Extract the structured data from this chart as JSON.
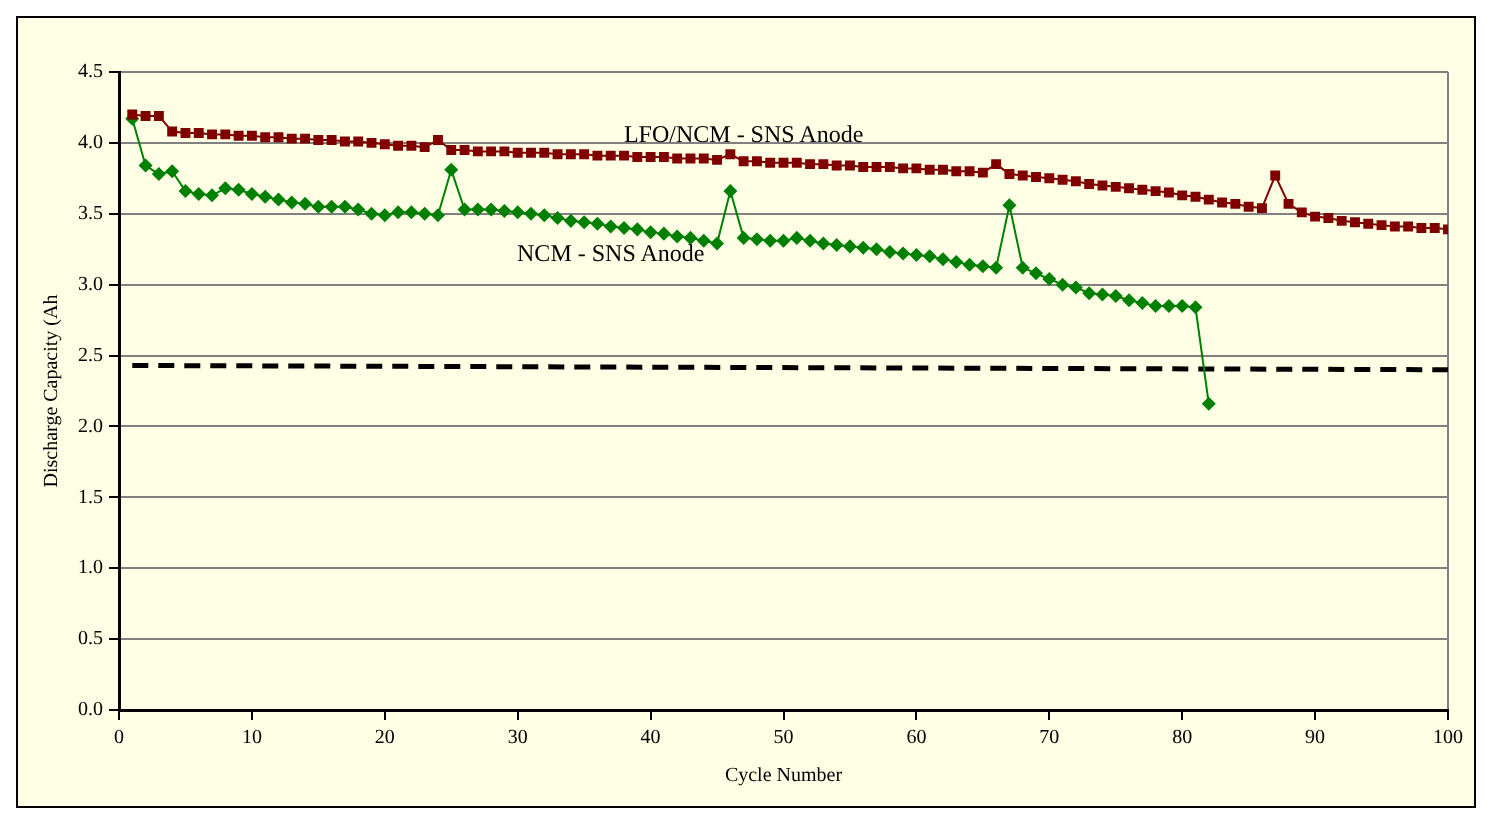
{
  "chart_data": {
    "type": "line",
    "xlabel": "Cycle Number",
    "ylabel": "Discharge Capacity (Ah",
    "xlim": [
      0,
      100
    ],
    "xticks": [
      0,
      10,
      20,
      30,
      40,
      50,
      60,
      70,
      80,
      90,
      100
    ],
    "ylim": [
      0,
      4.5
    ],
    "yticks": [
      {
        "value": 0,
        "label": "0.0"
      },
      {
        "value": 0.5,
        "label": "0.5"
      },
      {
        "value": 1,
        "label": "1.0"
      },
      {
        "value": 1.5,
        "label": "1.5"
      },
      {
        "value": 2,
        "label": "2.0"
      },
      {
        "value": 2.5,
        "label": "2.5"
      },
      {
        "value": 3,
        "label": "3.0"
      },
      {
        "value": 3.5,
        "label": "3.5"
      },
      {
        "value": 4,
        "label": "4.0"
      },
      {
        "value": 4.5,
        "label": "4.5"
      }
    ],
    "grid": "y",
    "legend": false,
    "series": [
      {
        "name": "LFO/NCM - SNS Anode",
        "color": "#800000",
        "marker": "square",
        "line_style": "solid",
        "x": [
          1,
          2,
          3,
          4,
          5,
          6,
          7,
          8,
          9,
          10,
          11,
          12,
          13,
          14,
          15,
          16,
          17,
          18,
          19,
          20,
          21,
          22,
          23,
          24,
          25,
          26,
          27,
          28,
          29,
          30,
          31,
          32,
          33,
          34,
          35,
          36,
          37,
          38,
          39,
          40,
          41,
          42,
          43,
          44,
          45,
          46,
          47,
          48,
          49,
          50,
          51,
          52,
          53,
          54,
          55,
          56,
          57,
          58,
          59,
          60,
          61,
          62,
          63,
          64,
          65,
          66,
          67,
          68,
          69,
          70,
          71,
          72,
          73,
          74,
          75,
          76,
          77,
          78,
          79,
          80,
          81,
          82,
          83,
          84,
          85,
          86,
          87,
          88,
          89,
          90,
          91,
          92,
          93,
          94,
          95,
          96,
          97,
          98,
          99,
          100
        ],
        "values": [
          4.2,
          4.19,
          4.19,
          4.08,
          4.07,
          4.07,
          4.06,
          4.06,
          4.05,
          4.05,
          4.04,
          4.04,
          4.03,
          4.03,
          4.02,
          4.02,
          4.01,
          4.01,
          4.0,
          3.99,
          3.98,
          3.98,
          3.97,
          4.02,
          3.95,
          3.95,
          3.94,
          3.94,
          3.94,
          3.93,
          3.93,
          3.93,
          3.92,
          3.92,
          3.92,
          3.91,
          3.91,
          3.91,
          3.9,
          3.9,
          3.9,
          3.89,
          3.89,
          3.89,
          3.88,
          3.92,
          3.87,
          3.87,
          3.86,
          3.86,
          3.86,
          3.85,
          3.85,
          3.84,
          3.84,
          3.83,
          3.83,
          3.83,
          3.82,
          3.82,
          3.81,
          3.81,
          3.8,
          3.8,
          3.79,
          3.85,
          3.78,
          3.77,
          3.76,
          3.75,
          3.74,
          3.73,
          3.71,
          3.7,
          3.69,
          3.68,
          3.67,
          3.66,
          3.65,
          3.63,
          3.62,
          3.6,
          3.58,
          3.57,
          3.55,
          3.54,
          3.77,
          3.57,
          3.51,
          3.48,
          3.47,
          3.45,
          3.44,
          3.43,
          3.42,
          3.41,
          3.41,
          3.4,
          3.4,
          3.39
        ]
      },
      {
        "name": "NCM - SNS Anode",
        "color": "#008000",
        "marker": "diamond",
        "line_style": "solid",
        "x": [
          1,
          2,
          3,
          4,
          5,
          6,
          7,
          8,
          9,
          10,
          11,
          12,
          13,
          14,
          15,
          16,
          17,
          18,
          19,
          20,
          21,
          22,
          23,
          24,
          25,
          26,
          27,
          28,
          29,
          30,
          31,
          32,
          33,
          34,
          35,
          36,
          37,
          38,
          39,
          40,
          41,
          42,
          43,
          44,
          45,
          46,
          47,
          48,
          49,
          50,
          51,
          52,
          53,
          54,
          55,
          56,
          57,
          58,
          59,
          60,
          61,
          62,
          63,
          64,
          65,
          66,
          67,
          68,
          69,
          70,
          71,
          72,
          73,
          74,
          75,
          76,
          77,
          78,
          79,
          80,
          81,
          82
        ],
        "values": [
          4.17,
          3.84,
          3.78,
          3.8,
          3.66,
          3.64,
          3.63,
          3.68,
          3.67,
          3.64,
          3.62,
          3.6,
          3.58,
          3.57,
          3.55,
          3.55,
          3.55,
          3.53,
          3.5,
          3.49,
          3.51,
          3.51,
          3.5,
          3.49,
          3.81,
          3.53,
          3.53,
          3.53,
          3.52,
          3.51,
          3.5,
          3.49,
          3.47,
          3.45,
          3.44,
          3.43,
          3.41,
          3.4,
          3.39,
          3.37,
          3.36,
          3.34,
          3.33,
          3.31,
          3.29,
          3.66,
          3.33,
          3.32,
          3.31,
          3.31,
          3.33,
          3.31,
          3.29,
          3.28,
          3.27,
          3.26,
          3.25,
          3.23,
          3.22,
          3.21,
          3.2,
          3.18,
          3.16,
          3.14,
          3.13,
          3.12,
          3.56,
          3.12,
          3.08,
          3.04,
          3.0,
          2.98,
          2.94,
          2.93,
          2.92,
          2.89,
          2.87,
          2.85,
          2.85,
          2.85,
          2.84,
          2.16
        ]
      },
      {
        "color": "#000000",
        "marker": "none",
        "line_style": "dashed",
        "x": [
          1,
          100
        ],
        "values": [
          2.43,
          2.4
        ]
      }
    ]
  }
}
